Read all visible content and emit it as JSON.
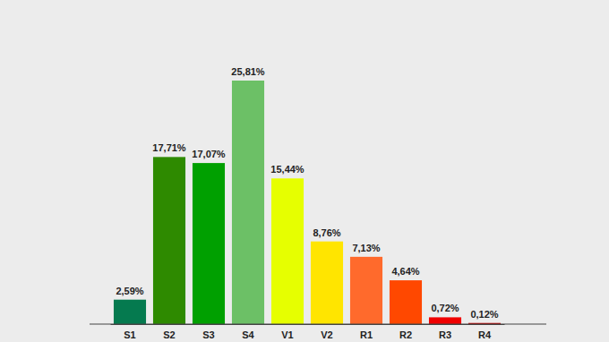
{
  "chart_data": {
    "type": "bar",
    "categories": [
      "S1",
      "S2",
      "S3",
      "S4",
      "V1",
      "V2",
      "R1",
      "R2",
      "R3",
      "R4"
    ],
    "values": [
      2.59,
      17.71,
      17.07,
      25.81,
      15.44,
      8.76,
      7.13,
      4.64,
      0.72,
      0.12
    ],
    "value_labels": [
      "2,59%",
      "17,71%",
      "17,07%",
      "25,81%",
      "15,44%",
      "8,76%",
      "7,13%",
      "4,64%",
      "0,72%",
      "0,12%"
    ],
    "colors": [
      "#057a4f",
      "#2e8a00",
      "#00a000",
      "#6cc066",
      "#e6ff00",
      "#ffe500",
      "#ff6a2c",
      "#ff4800",
      "#f00000",
      "#c80000"
    ],
    "data_labels": true,
    "tick_labels": "x"
  }
}
